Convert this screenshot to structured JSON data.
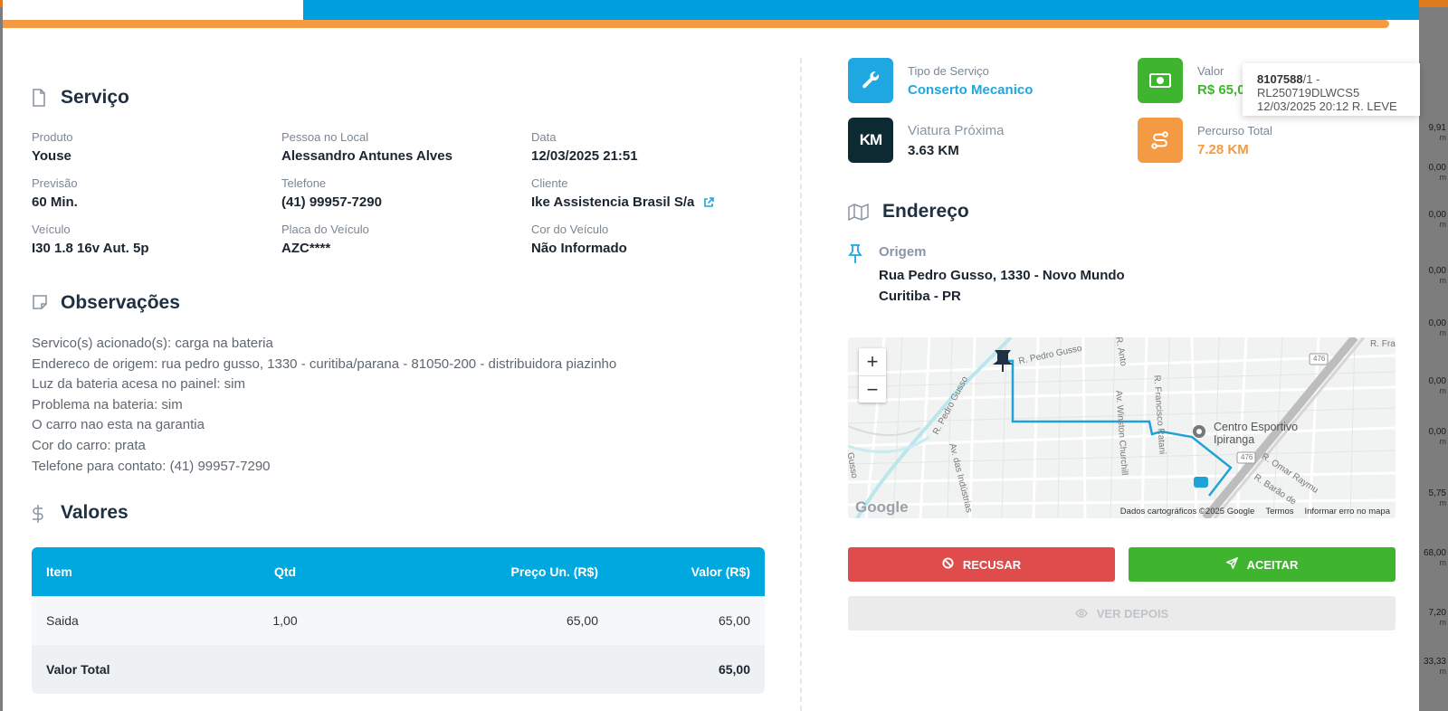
{
  "background": {
    "values": [
      {
        "v": "9,91",
        "u": "m"
      },
      {
        "v": "0,00",
        "u": "m"
      },
      {
        "v": "0,00",
        "u": "m"
      },
      {
        "v": "0,00",
        "u": "m"
      },
      {
        "v": "0,00",
        "u": "m"
      },
      {
        "v": "0,00",
        "u": "m"
      },
      {
        "v": "0,00",
        "u": "m"
      },
      {
        "v": "5,75",
        "u": "m"
      },
      {
        "v": "68,00",
        "u": "m"
      },
      {
        "v": "7,20",
        "u": "m"
      },
      {
        "v": "33,33",
        "u": "m"
      }
    ]
  },
  "servico": {
    "title": "Serviço",
    "fields": [
      {
        "label": "Produto",
        "value": "Youse"
      },
      {
        "label": "Pessoa no Local",
        "value": "Alessandro Antunes Alves"
      },
      {
        "label": "Data",
        "value": "12/03/2025 21:51"
      },
      {
        "label": "Previsão",
        "value": "60 Min."
      },
      {
        "label": "Telefone",
        "value": "(41) 99957-7290"
      },
      {
        "label": "Cliente",
        "value": "Ike Assistencia Brasil S/a"
      },
      {
        "label": "Veículo",
        "value": "I30 1.8 16v Aut. 5p"
      },
      {
        "label": "Placa do Veículo",
        "value": "AZC****"
      },
      {
        "label": "Cor do Veículo",
        "value": "Não Informado"
      }
    ]
  },
  "observacoes": {
    "title": "Observações",
    "lines": [
      "Servico(s) acionado(s): carga na bateria",
      "Endereco de origem: rua pedro gusso, 1330 - curitiba/parana - 81050-200 - distribuidora piazinho",
      "Luz da bateria acesa no painel: sim",
      "Problema na bateria: sim",
      "O carro nao esta na garantia",
      "Cor do carro: prata",
      "Telefone para contato: (41) 99957-7290"
    ]
  },
  "valores": {
    "title": "Valores",
    "headers": [
      "Item",
      "Qtd",
      "Preço Un. (R$)",
      "Valor (R$)"
    ],
    "rows": [
      {
        "item": "Saida",
        "qtd": "1,00",
        "preco": "65,00",
        "valor": "65,00"
      }
    ],
    "total_label": "Valor Total",
    "total_value": "65,00"
  },
  "cards": {
    "tipo": {
      "label": "Tipo de Serviço",
      "value": "Conserto Mecanico",
      "color": "#1ea7e1",
      "icon": "wrench-icon"
    },
    "valor": {
      "label": "Valor",
      "value": "R$ 65,0",
      "color": "#3fb52f",
      "icon": "money-icon"
    },
    "viatura": {
      "label": "Viatura Próxima",
      "value": "3.63 KM",
      "icon": "km-icon",
      "icon_text": "KM"
    },
    "percurso": {
      "label": "Percurso Total",
      "value": "7.28 KM",
      "color": "#f39a43",
      "icon": "route-icon"
    }
  },
  "endereco": {
    "title": "Endereço",
    "origem_label": "Origem",
    "line1": "Rua Pedro Gusso, 1330 - Novo Mundo",
    "line2": "Curitiba - PR"
  },
  "map": {
    "zoom_in": "+",
    "zoom_out": "−",
    "poi": "Centro Esportivo\nIpiranga",
    "poi_line1": "Centro Esportivo",
    "poi_line2": "Ipiranga",
    "google": "Google",
    "attribution": "Dados cartográficos ©2025 Google",
    "terms": "Termos",
    "report": "Informar erro no mapa",
    "streets": [
      "R. Pedro Gusso",
      "R. Pedro Gusso",
      "R. Francisco Ratani",
      "Av. Winston Churchill",
      "Av. das Indústrias",
      "R. Omar Raymu",
      "R. Barão de",
      "R. Fra",
      "R. Anto",
      "Gusso",
      "476",
      "476"
    ]
  },
  "actions": {
    "recusar": "RECUSAR",
    "aceitar": "ACEITAR",
    "ver_depois": "VER DEPOIS"
  },
  "tooltip": {
    "id_bold": "8107588",
    "id_rest": "/1 - RL250719DLWCS5",
    "line2": "12/03/2025 20:12 R. LEVE"
  }
}
